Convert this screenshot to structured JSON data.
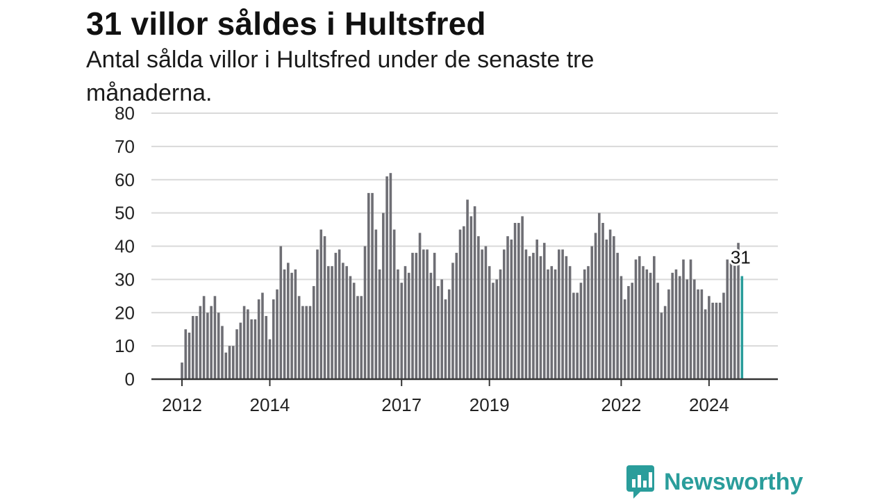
{
  "title": "31 villor såldes i Hultsfred",
  "subtitle": "Antal sålda villor i Hultsfred under de senaste tre månaderna.",
  "brand": {
    "name": "Newsworthy"
  },
  "colors": {
    "bar": "#6e6e74",
    "highlight": "#2a9d9b",
    "grid": "#d9d9d9",
    "axis": "#333333",
    "brand": "#2a9d9b"
  },
  "chart_data": {
    "type": "bar",
    "title": "31 villor såldes i Hultsfred",
    "subtitle": "Antal sålda villor i Hultsfred under de senaste tre månaderna.",
    "xlabel": "",
    "ylabel": "",
    "ylim": [
      0,
      80
    ],
    "yticks": [
      0,
      10,
      20,
      30,
      40,
      50,
      60,
      70,
      80
    ],
    "grid": true,
    "x_start": "2012-01",
    "x_end": "2025-03",
    "xtick_labels": [
      {
        "label": "2012",
        "x": "2012-01"
      },
      {
        "label": "2014",
        "x": "2014-01"
      },
      {
        "label": "2017",
        "x": "2017-01"
      },
      {
        "label": "2019",
        "x": "2019-01"
      },
      {
        "label": "2022",
        "x": "2022-01"
      },
      {
        "label": "2024",
        "x": "2024-01"
      }
    ],
    "last_value_label": "31",
    "series": [
      {
        "values": [
          5,
          15,
          14,
          19,
          19,
          22,
          25,
          20,
          22,
          25,
          20,
          16,
          8,
          10,
          10,
          15,
          17,
          22,
          21,
          18,
          18,
          24,
          26,
          19,
          12,
          24,
          27,
          40,
          33,
          35,
          32,
          33,
          25,
          22,
          22,
          22,
          28,
          39,
          45,
          43,
          34,
          34,
          38,
          39,
          35,
          34,
          31,
          29,
          25,
          25,
          40,
          56,
          56,
          45,
          33,
          50,
          61,
          62,
          45,
          33,
          29,
          34,
          32,
          38,
          38,
          44,
          39,
          39,
          32,
          38,
          28,
          30,
          24,
          27,
          35,
          38,
          45,
          46,
          54,
          49,
          52,
          43,
          39,
          40,
          34,
          29,
          30,
          33,
          39,
          43,
          42,
          47,
          47,
          49,
          39,
          37,
          38,
          42,
          37,
          41,
          33,
          34,
          33,
          39,
          39,
          37,
          34,
          26,
          26,
          29,
          33,
          34,
          40,
          44,
          50,
          47,
          42,
          45,
          43,
          38,
          31,
          24,
          28,
          29,
          36,
          37,
          34,
          33,
          32,
          37,
          29,
          20,
          22,
          27,
          32,
          33,
          31,
          36,
          30,
          36,
          30,
          27,
          27,
          21,
          25,
          23,
          23,
          23,
          26,
          36,
          35,
          36,
          41,
          31
        ]
      }
    ]
  }
}
